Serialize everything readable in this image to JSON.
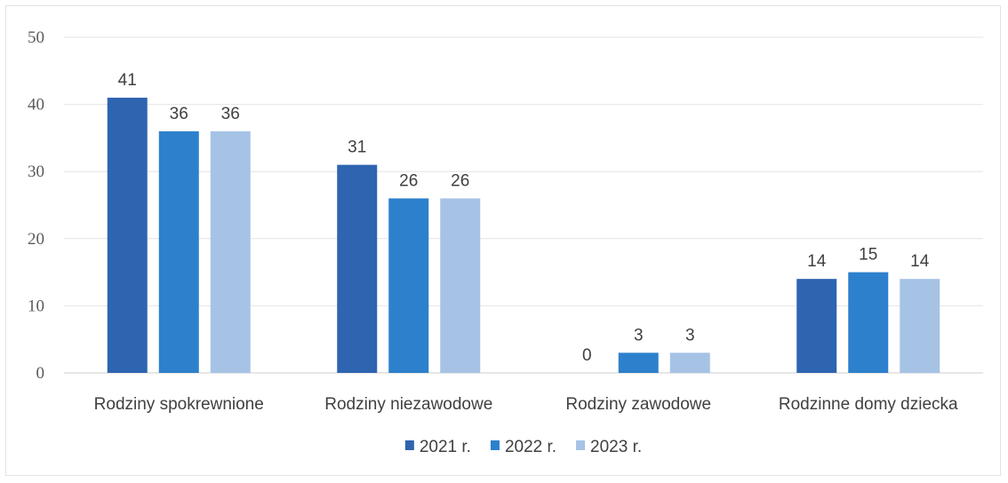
{
  "chart_data": {
    "type": "bar",
    "title": "",
    "xlabel": "",
    "ylabel": "",
    "ylim": [
      0,
      50
    ],
    "yticks": [
      0,
      10,
      20,
      30,
      40,
      50
    ],
    "grid": true,
    "legend_position": "bottom",
    "categories": [
      "Rodziny spokrewnione",
      "Rodziny niezawodowe",
      "Rodziny zawodowe",
      "Rodzinne domy dziecka"
    ],
    "series": [
      {
        "name": "2021 r.",
        "color": "#2e64b0",
        "values": [
          41,
          31,
          0,
          14
        ]
      },
      {
        "name": "2022 r.",
        "color": "#2d80cc",
        "values": [
          36,
          26,
          3,
          15
        ]
      },
      {
        "name": "2023 r.",
        "color": "#a6c3e6",
        "values": [
          36,
          26,
          3,
          14
        ]
      }
    ]
  }
}
